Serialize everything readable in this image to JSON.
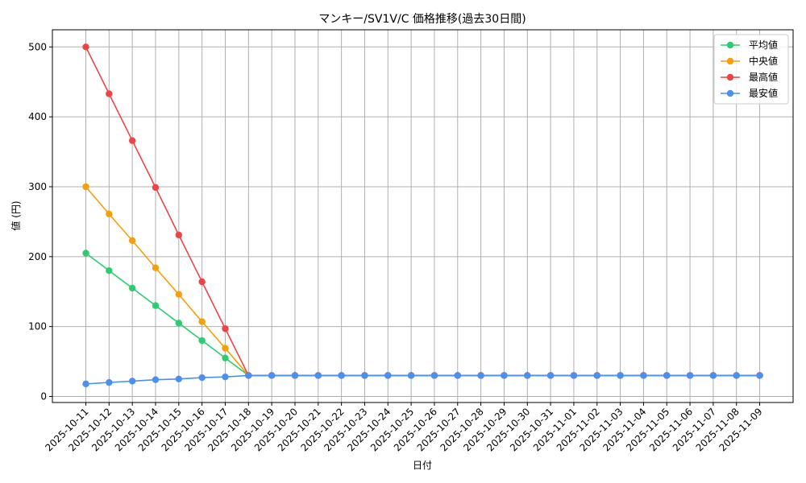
{
  "chart_data": {
    "type": "line",
    "title": "マンキー/SV1V/C 価格推移(過去30日間)",
    "xlabel": "日付",
    "ylabel": "値 (円)",
    "ylim": [
      -7,
      525
    ],
    "yticks": [
      0,
      100,
      200,
      300,
      400,
      500
    ],
    "grid": true,
    "legend_position": "top-right",
    "categories": [
      "2025-10-11",
      "2025-10-12",
      "2025-10-13",
      "2025-10-14",
      "2025-10-15",
      "2025-10-16",
      "2025-10-17",
      "2025-10-18",
      "2025-10-19",
      "2025-10-20",
      "2025-10-21",
      "2025-10-22",
      "2025-10-23",
      "2025-10-24",
      "2025-10-25",
      "2025-10-26",
      "2025-10-27",
      "2025-10-28",
      "2025-10-29",
      "2025-10-30",
      "2025-10-31",
      "2025-11-01",
      "2025-11-02",
      "2025-11-03",
      "2025-11-04",
      "2025-11-05",
      "2025-11-06",
      "2025-11-07",
      "2025-11-08",
      "2025-11-09"
    ],
    "series": [
      {
        "name": "平均値",
        "color": "#2ecc71",
        "values": [
          205,
          180,
          155,
          130,
          105,
          80,
          55,
          30,
          30,
          30,
          30,
          30,
          30,
          30,
          30,
          30,
          30,
          30,
          30,
          30,
          30,
          30,
          30,
          30,
          30,
          30,
          30,
          30,
          30,
          30
        ]
      },
      {
        "name": "中央値",
        "color": "#f5a00a",
        "values": [
          300,
          261,
          223,
          184,
          146,
          107,
          69,
          30,
          30,
          30,
          30,
          30,
          30,
          30,
          30,
          30,
          30,
          30,
          30,
          30,
          30,
          30,
          30,
          30,
          30,
          30,
          30,
          30,
          30,
          30
        ]
      },
      {
        "name": "最高値",
        "color": "#ef4444",
        "values": [
          500,
          433,
          366,
          299,
          231,
          164,
          97,
          30,
          30,
          30,
          30,
          30,
          30,
          30,
          30,
          30,
          30,
          30,
          30,
          30,
          30,
          30,
          30,
          30,
          30,
          30,
          30,
          30,
          30,
          30
        ]
      },
      {
        "name": "最安値",
        "color": "#4a90f0",
        "values": [
          18,
          20,
          22,
          24,
          25,
          27,
          28,
          30,
          30,
          30,
          30,
          30,
          30,
          30,
          30,
          30,
          30,
          30,
          30,
          30,
          30,
          30,
          30,
          30,
          30,
          30,
          30,
          30,
          30,
          30
        ]
      }
    ]
  }
}
